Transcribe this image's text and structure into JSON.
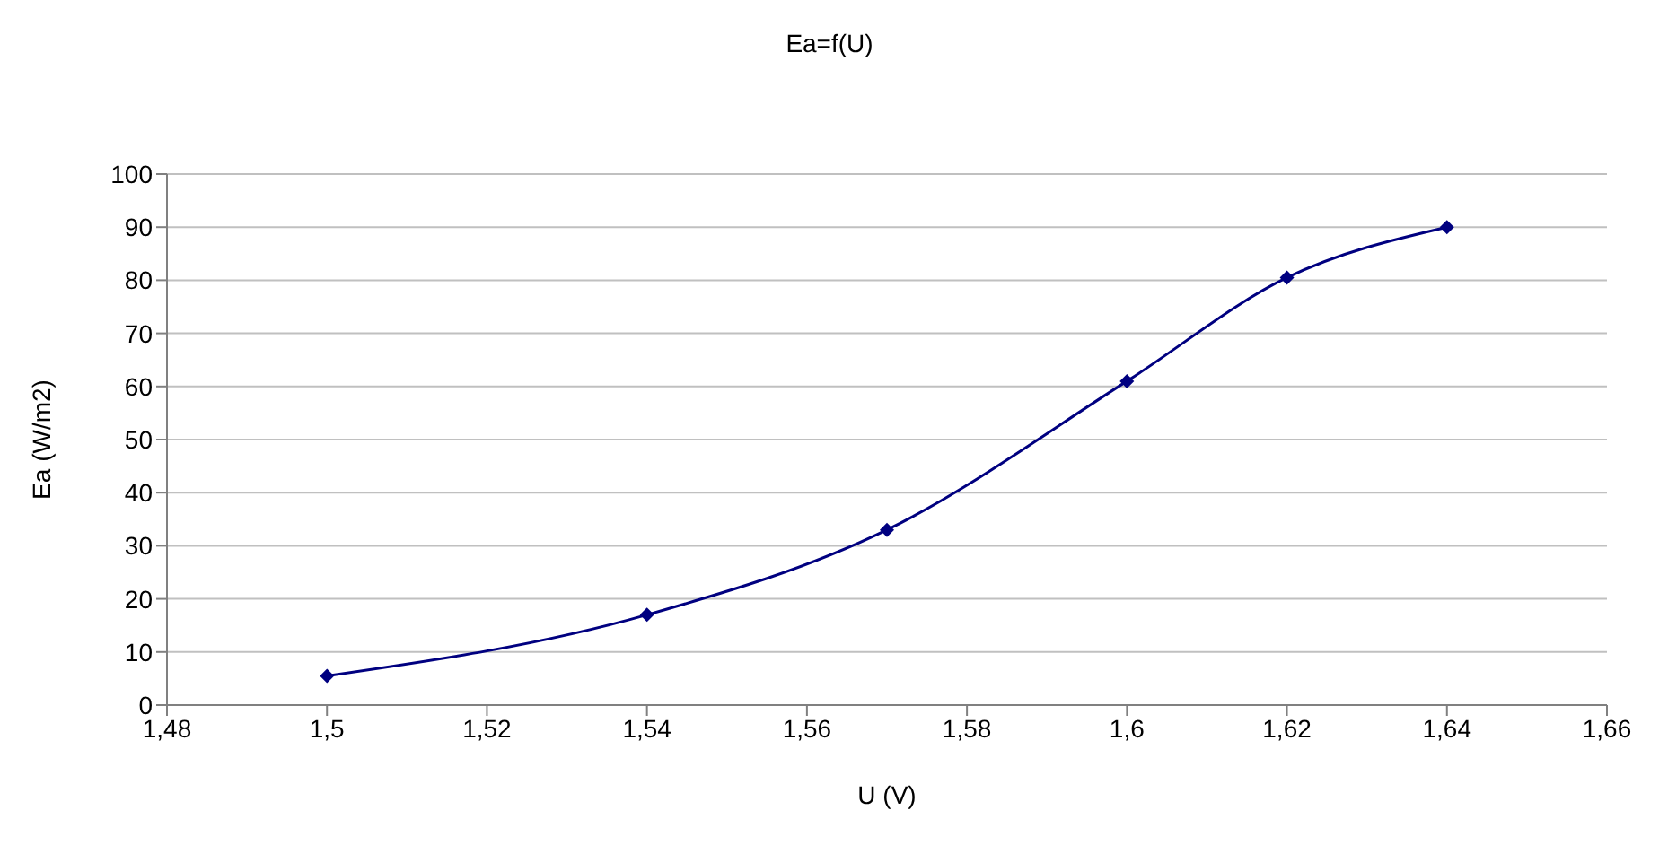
{
  "chart_data": {
    "type": "line",
    "title": "Ea=f(U)",
    "xlabel": "U (V)",
    "ylabel": "Ea (W/m2)",
    "x": [
      1.5,
      1.54,
      1.57,
      1.6,
      1.62,
      1.64
    ],
    "series": [
      {
        "color": "#000080",
        "values": [
          5.5,
          17,
          33,
          61,
          80.5,
          90
        ]
      }
    ],
    "xlim": [
      1.48,
      1.66
    ],
    "xticks": [
      {
        "value": 1.48,
        "label": "1,48"
      },
      {
        "value": 1.5,
        "label": "1,5"
      },
      {
        "value": 1.52,
        "label": "1,52"
      },
      {
        "value": 1.54,
        "label": "1,54"
      },
      {
        "value": 1.56,
        "label": "1,56"
      },
      {
        "value": 1.58,
        "label": "1,58"
      },
      {
        "value": 1.6,
        "label": "1,6"
      },
      {
        "value": 1.62,
        "label": "1,62"
      },
      {
        "value": 1.64,
        "label": "1,64"
      },
      {
        "value": 1.66,
        "label": "1,66"
      }
    ],
    "ylim": [
      0,
      100
    ],
    "yticks": [
      0,
      10,
      20,
      30,
      40,
      50,
      60,
      70,
      80,
      90,
      100
    ],
    "grid": "y",
    "marker": "diamond",
    "line_style": "solid"
  }
}
